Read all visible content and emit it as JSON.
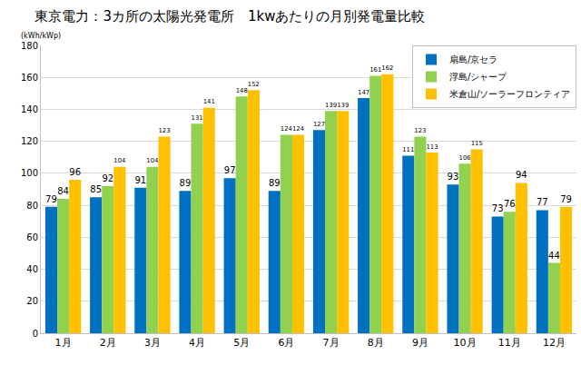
{
  "chart_data": {
    "type": "bar",
    "title": "東京電力：3カ所の太陽光発電所　1kwあたりの月別発電量比較",
    "y_label": "(kWh/kWp)",
    "categories": [
      "1月",
      "2月",
      "3月",
      "4月",
      "5月",
      "6月",
      "7月",
      "8月",
      "9月",
      "10月",
      "11月",
      "12月"
    ],
    "series": [
      {
        "name": "扇島/京セラ",
        "color": "#0070C0",
        "values": [
          79,
          85,
          91,
          89,
          97,
          89,
          127,
          147,
          111,
          93,
          73,
          77
        ]
      },
      {
        "name": "浮島/シャープ",
        "color": "#92D050",
        "values": [
          84,
          92,
          104,
          131,
          148,
          124,
          139,
          161,
          123,
          106,
          76,
          44
        ]
      },
      {
        "name": "米倉山/ソーラーフロンティア",
        "color": "#FFC000",
        "values": [
          96,
          104,
          123,
          141,
          152,
          124,
          139,
          162,
          113,
          115,
          94,
          79
        ]
      }
    ],
    "ylim": [
      0,
      180
    ],
    "yticks": [
      0,
      20,
      40,
      60,
      80,
      100,
      120,
      140,
      160,
      180
    ],
    "grid": true,
    "legend": "top-right",
    "data_labels": true
  }
}
